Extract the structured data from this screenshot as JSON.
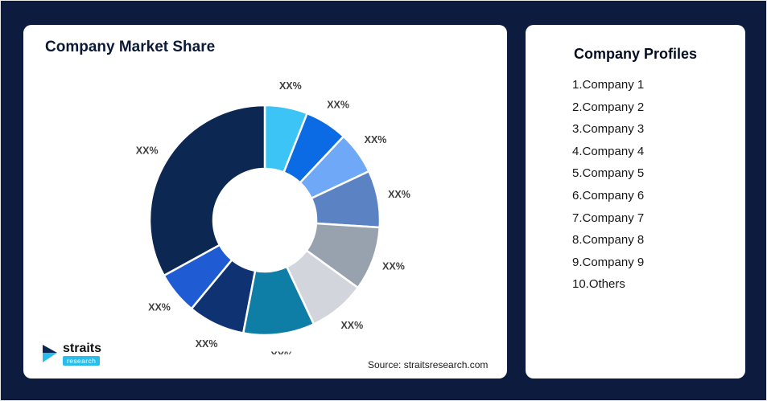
{
  "page": {
    "background": "#0d1b3e"
  },
  "left_card": {
    "title": "Company Market Share",
    "source": "Source: straitsresearch.com",
    "logo": {
      "text": "straits",
      "subtext": "research"
    }
  },
  "right_card": {
    "title": "Company Profiles",
    "items": [
      "1.Company 1",
      "2.Company 2",
      "3.Company 3",
      "4.Company 4",
      "5.Company 5",
      "6.Company 6",
      "7.Company 7",
      "8.Company 8",
      "9.Company 9",
      "10.Others"
    ]
  },
  "chart_data": {
    "type": "pie",
    "donut": true,
    "title": "Company Market Share",
    "source": "Source: straitsresearch.com",
    "legend_position": "none",
    "segments": [
      {
        "name": "Company 1",
        "label": "XX%",
        "value": 6,
        "color": "#3bc4f5"
      },
      {
        "name": "Company 2",
        "label": "XX%",
        "value": 6,
        "color": "#0a6be4"
      },
      {
        "name": "Company 3",
        "label": "XX%",
        "value": 6,
        "color": "#6ea8f7"
      },
      {
        "name": "Company 4",
        "label": "XX%",
        "value": 8,
        "color": "#5b83c4"
      },
      {
        "name": "Company 5",
        "label": "XX%",
        "value": 9,
        "color": "#98a2ae"
      },
      {
        "name": "Company 6",
        "label": "XX%",
        "value": 8,
        "color": "#d2d6dc"
      },
      {
        "name": "Company 7",
        "label": "XX%",
        "value": 10,
        "color": "#0f7ea6"
      },
      {
        "name": "Company 8",
        "label": "XX%",
        "value": 8,
        "color": "#0e3272"
      },
      {
        "name": "Company 9",
        "label": "XX%",
        "value": 6,
        "color": "#1f5bd2"
      },
      {
        "name": "Others",
        "label": "XX%",
        "value": 33,
        "color": "#0d2753"
      }
    ]
  }
}
